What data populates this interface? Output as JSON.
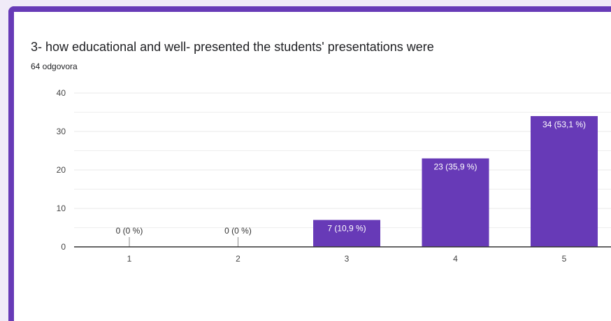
{
  "question": {
    "title": "3- how educational and well- presented the students' presentations were",
    "response_count": "64 odgovora"
  },
  "colors": {
    "accent": "#673ab7",
    "bar": "#673ab7",
    "grid": "#e8e8e8",
    "axis": "#333333"
  },
  "chart_data": {
    "type": "bar",
    "title": "3- how educational and well- presented the students' presentations were",
    "categories": [
      "1",
      "2",
      "3",
      "4",
      "5"
    ],
    "values": [
      0,
      0,
      7,
      23,
      34
    ],
    "data_labels": [
      "0 (0 %)",
      "0 (0 %)",
      "7 (10,9 %)",
      "23 (35,9 %)",
      "34 (53,1 %)"
    ],
    "ylim": [
      0,
      40
    ],
    "yticks": [
      0,
      10,
      20,
      30,
      40
    ],
    "grid": true,
    "legend": "none"
  }
}
